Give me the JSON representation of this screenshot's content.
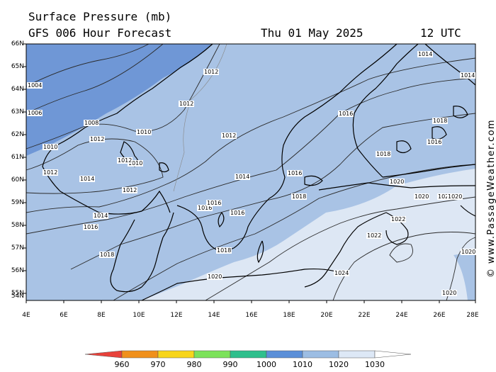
{
  "header": {
    "title": "Surface Pressure (mb)",
    "subtitle": "GFS 006 Hour Forecast",
    "date": "Thu 01 May 2025",
    "time": "12 UTC"
  },
  "credit": "© www.PassageWeather.com",
  "axes": {
    "lat_labels": [
      "66N",
      "65N",
      "64N",
      "63N",
      "62N",
      "61N",
      "60N",
      "59N",
      "58N",
      "57N",
      "56N",
      "55N",
      "54N"
    ],
    "lon_labels": [
      "4E",
      "6E",
      "8E",
      "10E",
      "12E",
      "14E",
      "16E",
      "18E",
      "20E",
      "22E",
      "24E",
      "26E",
      "28E"
    ]
  },
  "isobar_labels": [
    {
      "id": "iso-1004",
      "text": "1004"
    },
    {
      "id": "iso-1006",
      "text": "1006"
    },
    {
      "id": "iso-1008",
      "text": "1008"
    },
    {
      "id": "iso-1010-a",
      "text": "1010"
    },
    {
      "id": "iso-1010-b",
      "text": "1010"
    },
    {
      "id": "iso-1010-c",
      "text": "1010"
    },
    {
      "id": "iso-1012-a",
      "text": "1012"
    },
    {
      "id": "iso-1012-b",
      "text": "1012"
    },
    {
      "id": "iso-1012-c",
      "text": "1012"
    },
    {
      "id": "iso-1012-d",
      "text": "1012"
    },
    {
      "id": "iso-1012-e",
      "text": "1012"
    },
    {
      "id": "iso-1012-f",
      "text": "1012"
    },
    {
      "id": "iso-1012-g",
      "text": "1012"
    },
    {
      "id": "iso-1014-a",
      "text": "1014"
    },
    {
      "id": "iso-1014-b",
      "text": "1014"
    },
    {
      "id": "iso-1014-c",
      "text": "1014"
    },
    {
      "id": "iso-1014-d",
      "text": "1014"
    },
    {
      "id": "iso-1014-e",
      "text": "1014"
    },
    {
      "id": "iso-1016-a",
      "text": "1016"
    },
    {
      "id": "iso-1016-b",
      "text": "1016"
    },
    {
      "id": "iso-1016-c",
      "text": "1016"
    },
    {
      "id": "iso-1016-d",
      "text": "1016"
    },
    {
      "id": "iso-1016-e",
      "text": "1016"
    },
    {
      "id": "iso-1016-f",
      "text": "1016"
    },
    {
      "id": "iso-1016-g",
      "text": "1016"
    },
    {
      "id": "iso-1018-a",
      "text": "1018"
    },
    {
      "id": "iso-1018-b",
      "text": "1018"
    },
    {
      "id": "iso-1018-c",
      "text": "1018"
    },
    {
      "id": "iso-1018-d",
      "text": "1018"
    },
    {
      "id": "iso-1018-e",
      "text": "1018"
    },
    {
      "id": "iso-1020-a",
      "text": "1020"
    },
    {
      "id": "iso-1020-b",
      "text": "1020"
    },
    {
      "id": "iso-1020-c",
      "text": "1020"
    },
    {
      "id": "iso-1020-d",
      "text": "1020"
    },
    {
      "id": "iso-1020-e",
      "text": "1020"
    },
    {
      "id": "iso-1020-f",
      "text": "1020"
    },
    {
      "id": "iso-1020-g",
      "text": "1020"
    },
    {
      "id": "iso-1022-a",
      "text": "1022"
    },
    {
      "id": "iso-1022-b",
      "text": "1022"
    },
    {
      "id": "iso-1024",
      "text": "1024"
    }
  ],
  "legend": {
    "labels": [
      "960",
      "970",
      "980",
      "990",
      "1000",
      "1010",
      "1020",
      "1030"
    ],
    "colors": [
      "#e8413a",
      "#f0901c",
      "#f7d51c",
      "#7ce25a",
      "#2fbf8c",
      "#5b8fd8",
      "#9cbde3",
      "#dde8f6"
    ]
  },
  "colors": {
    "low": "#6f97d6",
    "mid": "#a9c3e5",
    "high": "#dde7f4",
    "coast": "#000000",
    "isobar": "#2a2a2a"
  }
}
